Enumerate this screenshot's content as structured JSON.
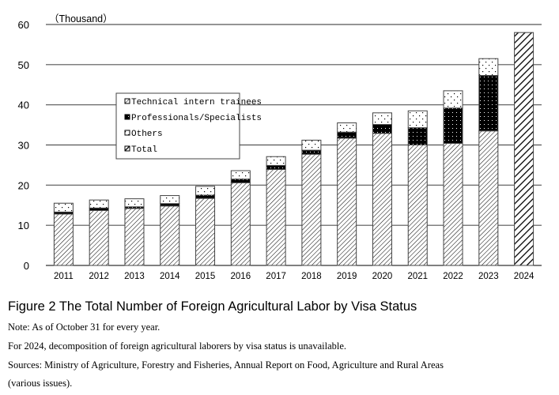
{
  "chart_data": {
    "type": "bar",
    "stacked": true,
    "unit_label": "（Thousand）",
    "categories": [
      "2011",
      "2012",
      "2013",
      "2014",
      "2015",
      "2016",
      "2017",
      "2018",
      "2019",
      "2020",
      "2021",
      "2022",
      "2023",
      "2024"
    ],
    "series": [
      {
        "name": "Technical intern trainees",
        "values": [
          12.8,
          13.7,
          14.2,
          14.8,
          16.7,
          20.6,
          23.9,
          27.7,
          31.7,
          32.9,
          30.0,
          30.4,
          33.5,
          null
        ]
      },
      {
        "name": "Professionals/Specialists",
        "values": [
          0.5,
          0.6,
          0.4,
          0.6,
          0.8,
          0.9,
          1.0,
          1.0,
          1.5,
          2.2,
          4.3,
          8.8,
          13.8,
          null
        ]
      },
      {
        "name": "Others",
        "values": [
          2.2,
          2.0,
          2.0,
          2.0,
          2.2,
          2.1,
          2.2,
          2.5,
          2.3,
          2.9,
          4.2,
          4.3,
          4.2,
          null
        ]
      },
      {
        "name": "Total",
        "values": [
          null,
          null,
          null,
          null,
          null,
          null,
          null,
          null,
          null,
          null,
          null,
          null,
          null,
          58.0
        ]
      }
    ],
    "ylim": [
      0,
      60
    ],
    "yticks": [
      "0",
      "10",
      "20",
      "30",
      "40",
      "50",
      "60"
    ],
    "grid": true,
    "legend_placement": "upper-left-center",
    "xlabel": "",
    "ylabel": ""
  },
  "caption": {
    "title": "Figure 2 The Total Number of Foreign Agricultural Labor by Visa Status",
    "notes": [
      "Note: As of October 31 for every year.",
      "For 2024, decomposition of foreign agricultural laborers by visa status is unavailable.",
      "Sources: Ministry of Agriculture, Forestry and Fisheries, Annual Report on Food, Agriculture and Rural Areas",
      "(various issues)."
    ]
  }
}
